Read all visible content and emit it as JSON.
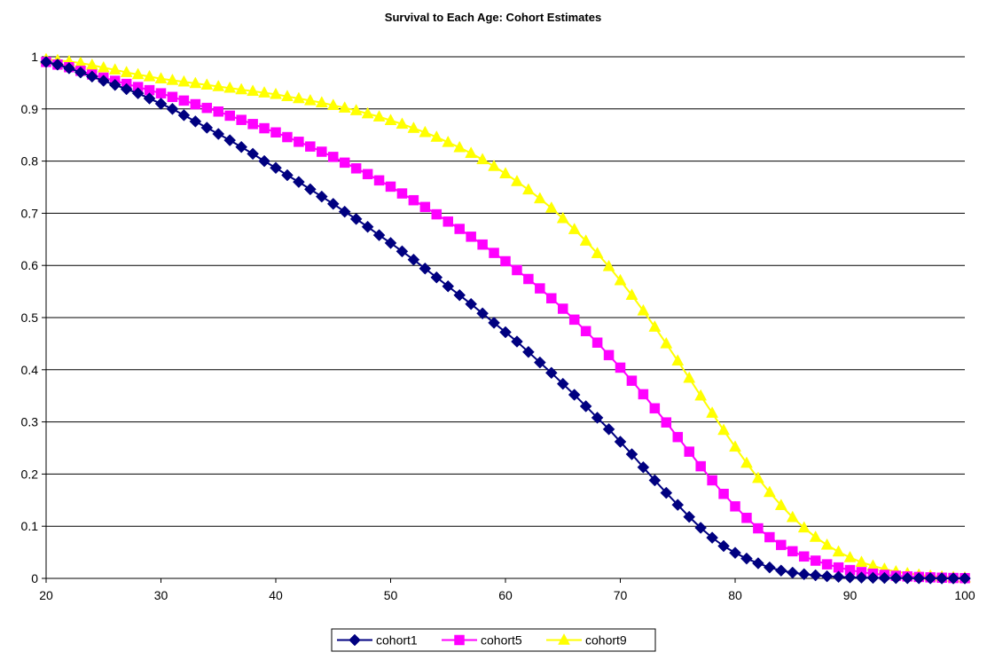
{
  "chart_data": {
    "type": "line",
    "title": "Survival  to Each Age: Cohort Estimates",
    "xlabel": "",
    "ylabel": "",
    "xlim": [
      20,
      100
    ],
    "ylim": [
      0,
      1
    ],
    "x_ticks": [
      "20",
      "30",
      "40",
      "50",
      "60",
      "70",
      "80",
      "90",
      "100"
    ],
    "y_ticks": [
      "0",
      "0.1",
      "0.2",
      "0.3",
      "0.4",
      "0.5",
      "0.6",
      "0.7",
      "0.8",
      "0.9",
      "1"
    ],
    "grid": "horizontal",
    "legend_position": "bottom",
    "x": [
      20,
      21,
      22,
      23,
      24,
      25,
      26,
      27,
      28,
      29,
      30,
      31,
      32,
      33,
      34,
      35,
      36,
      37,
      38,
      39,
      40,
      41,
      42,
      43,
      44,
      45,
      46,
      47,
      48,
      49,
      50,
      51,
      52,
      53,
      54,
      55,
      56,
      57,
      58,
      59,
      60,
      61,
      62,
      63,
      64,
      65,
      66,
      67,
      68,
      69,
      70,
      71,
      72,
      73,
      74,
      75,
      76,
      77,
      78,
      79,
      80,
      81,
      82,
      83,
      84,
      85,
      86,
      87,
      88,
      89,
      90,
      91,
      92,
      93,
      94,
      95,
      96,
      97,
      98,
      99,
      100
    ],
    "series": [
      {
        "name": "cohort1",
        "color": "#000080",
        "marker": "diamond",
        "values": [
          0.99,
          0.985,
          0.978,
          0.97,
          0.962,
          0.954,
          0.946,
          0.938,
          0.93,
          0.92,
          0.91,
          0.9,
          0.888,
          0.876,
          0.864,
          0.852,
          0.84,
          0.827,
          0.814,
          0.8,
          0.787,
          0.773,
          0.76,
          0.746,
          0.732,
          0.718,
          0.703,
          0.689,
          0.674,
          0.658,
          0.643,
          0.627,
          0.611,
          0.594,
          0.577,
          0.56,
          0.543,
          0.526,
          0.508,
          0.49,
          0.472,
          0.454,
          0.434,
          0.414,
          0.394,
          0.373,
          0.352,
          0.33,
          0.308,
          0.286,
          0.262,
          0.238,
          0.213,
          0.188,
          0.164,
          0.141,
          0.118,
          0.097,
          0.078,
          0.062,
          0.049,
          0.038,
          0.029,
          0.021,
          0.015,
          0.011,
          0.008,
          0.006,
          0.004,
          0.003,
          0.002,
          0.0015,
          0.001,
          0.0008,
          0.0006,
          0.0004,
          0.0003,
          0.0002,
          0.0001,
          5e-05,
          0
        ]
      },
      {
        "name": "cohort5",
        "color": "#ff00ff",
        "marker": "square",
        "values": [
          0.99,
          0.985,
          0.98,
          0.973,
          0.966,
          0.96,
          0.954,
          0.948,
          0.942,
          0.936,
          0.93,
          0.923,
          0.916,
          0.909,
          0.902,
          0.895,
          0.887,
          0.879,
          0.871,
          0.863,
          0.855,
          0.846,
          0.837,
          0.828,
          0.818,
          0.808,
          0.797,
          0.786,
          0.775,
          0.763,
          0.751,
          0.738,
          0.725,
          0.712,
          0.698,
          0.684,
          0.67,
          0.655,
          0.64,
          0.624,
          0.608,
          0.591,
          0.574,
          0.556,
          0.537,
          0.517,
          0.496,
          0.474,
          0.452,
          0.428,
          0.404,
          0.379,
          0.353,
          0.326,
          0.299,
          0.271,
          0.243,
          0.215,
          0.188,
          0.162,
          0.138,
          0.116,
          0.096,
          0.079,
          0.064,
          0.052,
          0.042,
          0.034,
          0.027,
          0.021,
          0.016,
          0.012,
          0.009,
          0.0068,
          0.005,
          0.0037,
          0.0027,
          0.0019,
          0.0013,
          0.0008,
          0.0005
        ]
      },
      {
        "name": "cohort9",
        "color": "#ffff00",
        "marker": "triangle",
        "values": [
          0.995,
          0.993,
          0.991,
          0.988,
          0.984,
          0.979,
          0.975,
          0.97,
          0.966,
          0.962,
          0.958,
          0.955,
          0.952,
          0.949,
          0.946,
          0.943,
          0.94,
          0.937,
          0.934,
          0.931,
          0.928,
          0.924,
          0.92,
          0.916,
          0.912,
          0.907,
          0.902,
          0.897,
          0.891,
          0.885,
          0.878,
          0.871,
          0.863,
          0.855,
          0.846,
          0.836,
          0.826,
          0.815,
          0.803,
          0.79,
          0.776,
          0.761,
          0.745,
          0.728,
          0.71,
          0.69,
          0.669,
          0.647,
          0.623,
          0.598,
          0.571,
          0.543,
          0.513,
          0.482,
          0.45,
          0.417,
          0.384,
          0.35,
          0.317,
          0.284,
          0.252,
          0.221,
          0.192,
          0.165,
          0.14,
          0.117,
          0.097,
          0.079,
          0.064,
          0.051,
          0.04,
          0.031,
          0.024,
          0.018,
          0.013,
          0.0095,
          0.0068,
          0.0047,
          0.0031,
          0.002,
          0.0012
        ]
      }
    ]
  }
}
